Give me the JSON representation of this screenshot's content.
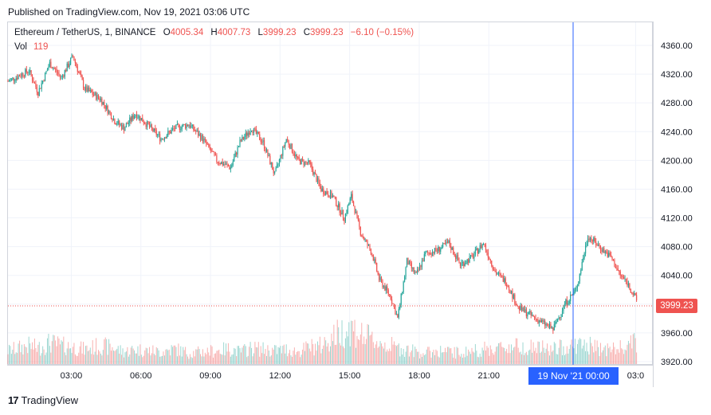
{
  "published": "Published on TradingView.com, Nov 19, 2021 03:06 UTC",
  "legend": {
    "symbol": "Ethereum / TetherUS, 1, BINANCE",
    "o_label": "O",
    "o_value": "4005.34",
    "h_label": "H",
    "h_value": "4007.73",
    "l_label": "L",
    "l_value": "3999.23",
    "c_label": "C",
    "c_value": "3999.23",
    "change": "−6.10 (−0.15%)",
    "vol_label": "Vol",
    "vol_value": "119"
  },
  "last_price_label": "3999.23",
  "crosshair_date": "19 Nov '21   00:00",
  "brand": {
    "logo": "17",
    "name": "TradingView"
  },
  "colors": {
    "up": "#26a69a",
    "down": "#ef5350",
    "crosshair": "#2962ff",
    "grid": "#f0f3fa",
    "axis_text": "#131722"
  },
  "chart_data": {
    "type": "candlestick",
    "title": "Ethereum / TetherUS, 1, BINANCE",
    "x_ticks": [
      "03:00",
      "06:00",
      "09:00",
      "12:00",
      "15:00",
      "18:00",
      "21:00",
      "03:0"
    ],
    "y_ticks": [
      "4360.00",
      "4320.00",
      "4280.00",
      "4240.00",
      "4200.00",
      "4160.00",
      "4120.00",
      "4080.00",
      "4040.00",
      "4000.00",
      "3960.00",
      "3920.00"
    ],
    "ylim": [
      3920,
      4360
    ],
    "x_hours": [
      0.0,
      0.9,
      1.3,
      1.8,
      2.3,
      2.8,
      3.3,
      4.0,
      4.6,
      5.0,
      5.5,
      6.0,
      6.6,
      7.2,
      7.8,
      8.4,
      9.0,
      9.6,
      10.0,
      10.5,
      11.0,
      11.5,
      12.0,
      12.5,
      13.0,
      13.5,
      14.0,
      14.5,
      14.8,
      15.2,
      15.7,
      16.0,
      16.5,
      16.8,
      17.2,
      17.6,
      18.0,
      18.5,
      19.0,
      19.5,
      20.0,
      20.5,
      21.0,
      21.5,
      22.0,
      22.5,
      23.0,
      23.5,
      24.0,
      24.5,
      25.0,
      25.5,
      26.0,
      26.4,
      26.7,
      27.1
    ],
    "close": [
      4310,
      4325,
      4295,
      4335,
      4315,
      4345,
      4300,
      4285,
      4255,
      4245,
      4265,
      4250,
      4230,
      4245,
      4250,
      4230,
      4200,
      4190,
      4225,
      4245,
      4225,
      4180,
      4230,
      4200,
      4195,
      4160,
      4150,
      4120,
      4150,
      4100,
      4070,
      4035,
      4010,
      3980,
      4060,
      4040,
      4070,
      4075,
      4085,
      4055,
      4065,
      4085,
      4045,
      4030,
      3995,
      3985,
      3975,
      3965,
      4000,
      4020,
      4095,
      4080,
      4065,
      4040,
      4030,
      4005
    ],
    "volume": [
      22,
      30,
      26,
      35,
      30,
      28,
      24,
      30,
      26,
      20,
      24,
      22,
      20,
      25,
      18,
      20,
      22,
      25,
      20,
      26,
      24,
      22,
      24,
      20,
      28,
      30,
      45,
      55,
      60,
      48,
      40,
      35,
      30,
      26,
      24,
      20,
      18,
      22,
      20,
      18,
      22,
      24,
      26,
      28,
      30,
      28,
      26,
      24,
      28,
      32,
      30,
      26,
      24,
      26,
      30,
      35
    ],
    "last_price": 3999.23,
    "crosshair_time": "19 Nov '21 00:00"
  }
}
